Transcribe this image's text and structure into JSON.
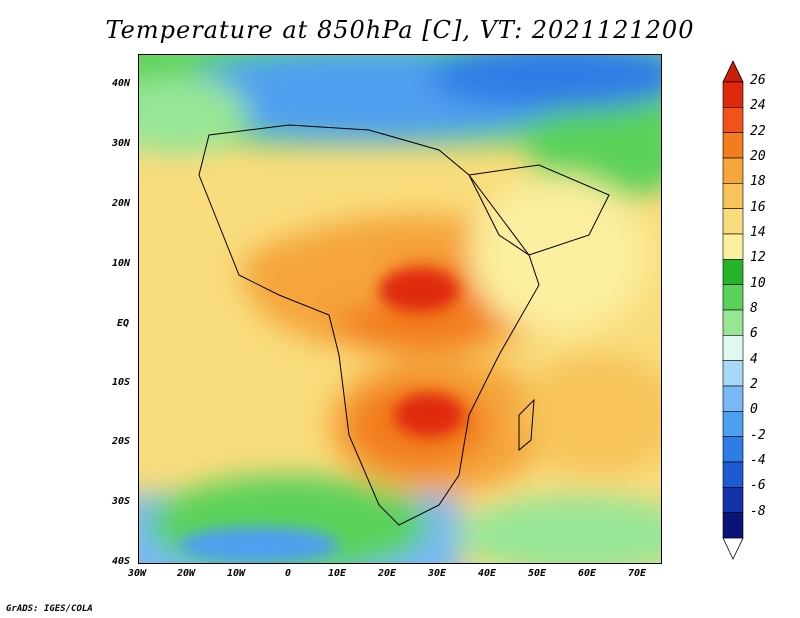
{
  "title": "Temperature at 850hPa [C], VT: 2021121200",
  "footer": "GrADS: IGES/COLA",
  "map": {
    "projection": "latlon",
    "lon_range": [
      -30,
      75
    ],
    "lat_range": [
      -40,
      45
    ],
    "coastlines": true,
    "country_borders": true
  },
  "axes": {
    "y_ticks": [
      "40N",
      "30N",
      "20N",
      "10N",
      "EQ",
      "10S",
      "20S",
      "30S",
      "40S"
    ],
    "x_ticks": [
      "30W",
      "20W",
      "10W",
      "0",
      "10E",
      "20E",
      "30E",
      "40E",
      "50E",
      "60E",
      "70E"
    ]
  },
  "colorbar": {
    "labels": [
      "26",
      "24",
      "22",
      "20",
      "18",
      "16",
      "14",
      "12",
      "10",
      "8",
      "6",
      "4",
      "2",
      "0",
      "-2",
      "-4",
      "-6",
      "-8"
    ],
    "colors": [
      "#e0290c",
      "#f2521a",
      "#f27c1e",
      "#f5a53a",
      "#f7c35a",
      "#f9dc7c",
      "#fbee9e",
      "#28b428",
      "#5ad25a",
      "#96e696",
      "#e0f8f0",
      "#a8d8f8",
      "#78b8f4",
      "#4f9ff0",
      "#2d7de6",
      "#1e5ad2",
      "#1432aa",
      "#0a1478"
    ],
    "top_arrow_color": "#c81e0a",
    "bottom_arrow_color": "#ffffff"
  }
}
